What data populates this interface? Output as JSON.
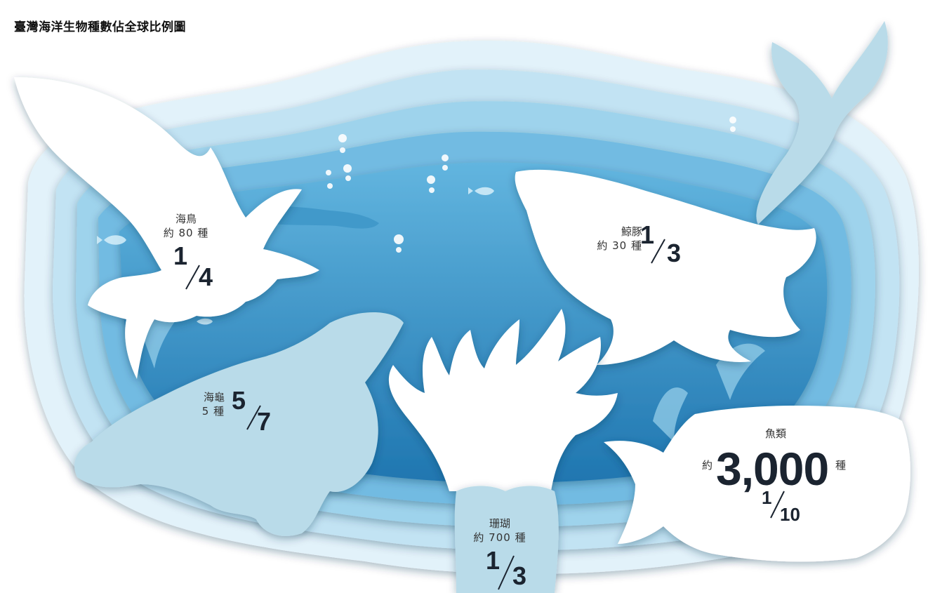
{
  "title": "臺灣海洋生物種數佔全球比例圖",
  "groups": {
    "seabird": {
      "name": "海鳥",
      "count": "約 80 種",
      "numerator": "1",
      "denominator": "4"
    },
    "cetacean": {
      "name": "鯨豚",
      "count": "約 30 種",
      "numerator": "1",
      "denominator": "3"
    },
    "turtle": {
      "name": "海龜",
      "count": "5 種",
      "numerator": "5",
      "denominator": "7"
    },
    "coral": {
      "name": "珊瑚",
      "count": "約 700 種",
      "numerator": "1",
      "denominator": "3"
    },
    "fish": {
      "name": "魚類",
      "prefix": "約",
      "value": "3,000",
      "suffix": "種",
      "numerator": "1",
      "denominator": "10"
    }
  },
  "colors": {
    "ocean_outer": "#d3ebf7",
    "ocean_mid": "#8fcbe8",
    "ocean_deep": "#2f89c2",
    "silhouette_white": "#ffffff",
    "silhouette_light": "#b9dbe9",
    "text_dark": "#1b2430"
  }
}
